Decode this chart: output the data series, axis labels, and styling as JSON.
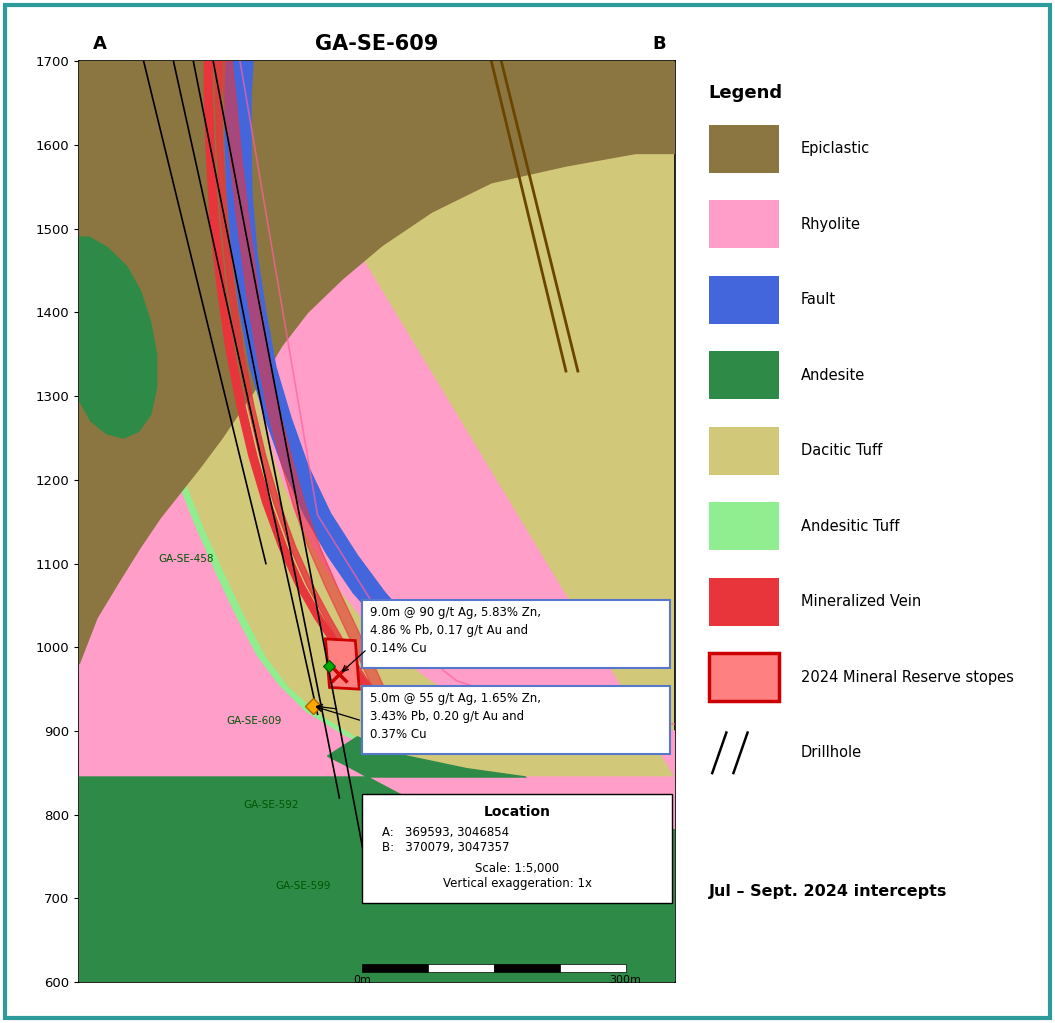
{
  "title": "GA-SE-609",
  "label_A": "A",
  "label_B": "B",
  "y_min": 600,
  "y_max": 1700,
  "x_min": 0,
  "x_max": 600,
  "yticks": [
    600,
    700,
    800,
    900,
    1000,
    1100,
    1200,
    1300,
    1400,
    1500,
    1600,
    1700
  ],
  "colors": {
    "epiclastic": "#8B7540",
    "rhyolite": "#FF9EC8",
    "fault": "#4466DD",
    "andesite": "#2E8B47",
    "dacitic_tuff": "#D2C87A",
    "andesitic_tuff": "#90EE90",
    "mineralized_vein": "#E8353C",
    "mineral_reserve": "#FF8080",
    "mineral_reserve_border": "#CC0000",
    "background": "#FFFFFF",
    "border": "#2E9B9B",
    "brown_fault": "#6B4500"
  },
  "intercept_text1": "9.0m @ 90 g/t Ag, 5.83% Zn,\n4.86 % Pb, 0.17 g/t Au and\n0.14% Cu",
  "intercept_text2": "5.0m @ 55 g/t Ag, 1.65% Zn,\n3.43% Pb, 0.20 g/t Au and\n0.37% Cu",
  "location_title": "Location",
  "location_A": "A:   369593, 3046854",
  "location_B": "B:   370079, 3047357",
  "scale_text": "Scale: 1:5,000",
  "vert_exag": "Vertical exaggeration: 1x",
  "scale_bar_label_0": "0m",
  "scale_bar_label_300": "300m",
  "intercepts_header": "Jul – Sept. 2024 intercepts"
}
